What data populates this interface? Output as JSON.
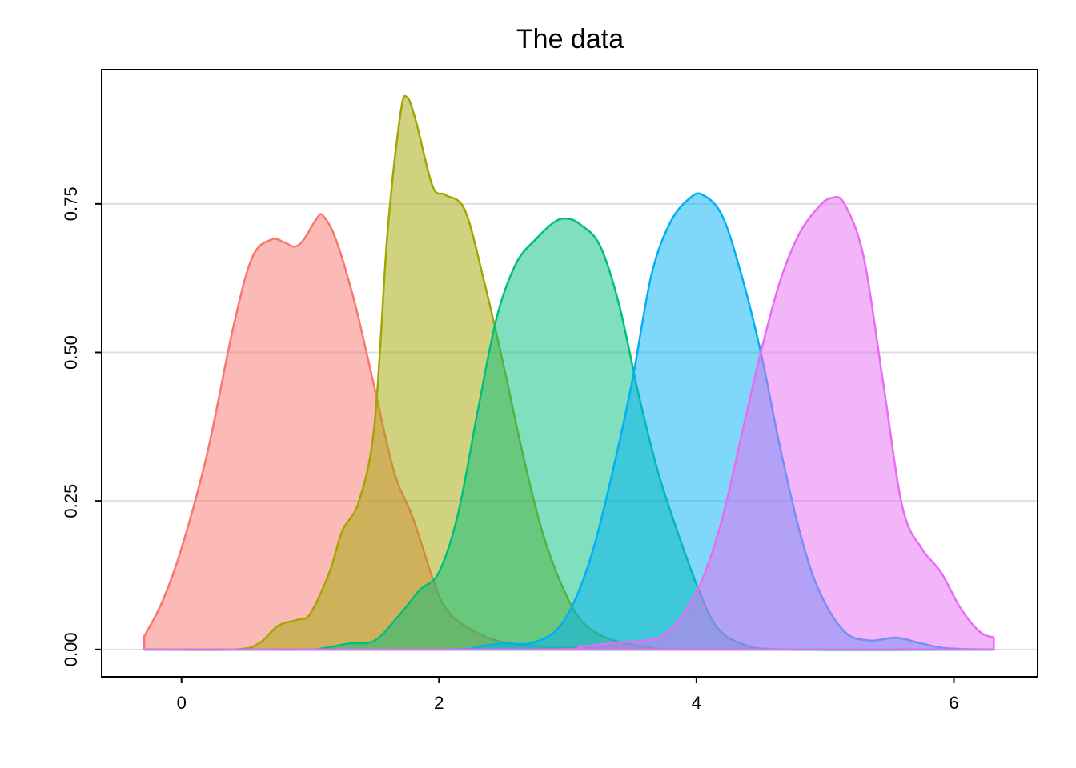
{
  "chart_data": {
    "type": "area",
    "title": "The data",
    "xlabel": "",
    "ylabel": "",
    "xlim": [
      -0.62,
      6.65
    ],
    "ylim": [
      -0.046,
      0.976
    ],
    "x_ticks": [
      0,
      2,
      4,
      6
    ],
    "y_ticks": [
      0,
      0.25,
      0.5,
      0.75
    ],
    "x_tick_labels": [
      "0",
      "2",
      "4",
      "6"
    ],
    "y_tick_labels": [
      "0.00",
      "0.25",
      "0.50",
      "0.75"
    ],
    "grid": {
      "horizontal": true,
      "vertical": false
    },
    "legend": "none",
    "series": [
      {
        "color": "#F8766D",
        "points": [
          [
            -0.29,
            0.022
          ],
          [
            -0.15,
            0.08
          ],
          [
            0.0,
            0.17
          ],
          [
            0.2,
            0.33
          ],
          [
            0.4,
            0.54
          ],
          [
            0.55,
            0.66
          ],
          [
            0.7,
            0.69
          ],
          [
            0.8,
            0.685
          ],
          [
            0.88,
            0.678
          ],
          [
            0.95,
            0.69
          ],
          [
            1.05,
            0.725
          ],
          [
            1.1,
            0.73
          ],
          [
            1.2,
            0.69
          ],
          [
            1.35,
            0.58
          ],
          [
            1.5,
            0.44
          ],
          [
            1.65,
            0.3
          ],
          [
            1.8,
            0.22
          ],
          [
            1.95,
            0.12
          ],
          [
            2.05,
            0.07
          ],
          [
            2.2,
            0.04
          ],
          [
            2.45,
            0.015
          ],
          [
            2.8,
            0.005
          ],
          [
            3.2,
            0.002
          ],
          [
            3.6,
            0.0
          ],
          [
            6.31,
            0.0
          ]
        ]
      },
      {
        "color": "#A3A500",
        "points": [
          [
            -0.29,
            0.0
          ],
          [
            0.4,
            0.0
          ],
          [
            0.6,
            0.01
          ],
          [
            0.75,
            0.04
          ],
          [
            0.9,
            0.05
          ],
          [
            1.0,
            0.06
          ],
          [
            1.15,
            0.13
          ],
          [
            1.25,
            0.2
          ],
          [
            1.38,
            0.25
          ],
          [
            1.5,
            0.38
          ],
          [
            1.6,
            0.7
          ],
          [
            1.7,
            0.9
          ],
          [
            1.75,
            0.93
          ],
          [
            1.82,
            0.89
          ],
          [
            1.95,
            0.78
          ],
          [
            2.05,
            0.765
          ],
          [
            2.2,
            0.74
          ],
          [
            2.35,
            0.62
          ],
          [
            2.5,
            0.48
          ],
          [
            2.65,
            0.33
          ],
          [
            2.8,
            0.2
          ],
          [
            2.95,
            0.11
          ],
          [
            3.1,
            0.05
          ],
          [
            3.3,
            0.02
          ],
          [
            3.6,
            0.005
          ],
          [
            4.0,
            0.0
          ],
          [
            6.31,
            0.0
          ]
        ]
      },
      {
        "color": "#00BF7D",
        "points": [
          [
            -0.29,
            0.0
          ],
          [
            0.9,
            0.0
          ],
          [
            1.1,
            0.002
          ],
          [
            1.3,
            0.01
          ],
          [
            1.5,
            0.015
          ],
          [
            1.7,
            0.06
          ],
          [
            1.85,
            0.1
          ],
          [
            2.0,
            0.13
          ],
          [
            2.15,
            0.23
          ],
          [
            2.3,
            0.4
          ],
          [
            2.45,
            0.56
          ],
          [
            2.6,
            0.65
          ],
          [
            2.75,
            0.69
          ],
          [
            2.9,
            0.72
          ],
          [
            3.0,
            0.725
          ],
          [
            3.1,
            0.715
          ],
          [
            3.25,
            0.68
          ],
          [
            3.4,
            0.58
          ],
          [
            3.55,
            0.43
          ],
          [
            3.7,
            0.3
          ],
          [
            3.85,
            0.2
          ],
          [
            4.0,
            0.11
          ],
          [
            4.15,
            0.04
          ],
          [
            4.35,
            0.01
          ],
          [
            4.7,
            0.0
          ],
          [
            6.31,
            0.0
          ]
        ]
      },
      {
        "color": "#00B0F6",
        "points": [
          [
            -0.29,
            0.0
          ],
          [
            2.0,
            0.0
          ],
          [
            2.3,
            0.005
          ],
          [
            2.5,
            0.01
          ],
          [
            2.7,
            0.01
          ],
          [
            2.9,
            0.03
          ],
          [
            3.05,
            0.08
          ],
          [
            3.2,
            0.17
          ],
          [
            3.35,
            0.3
          ],
          [
            3.5,
            0.45
          ],
          [
            3.65,
            0.63
          ],
          [
            3.8,
            0.72
          ],
          [
            3.95,
            0.76
          ],
          [
            4.05,
            0.765
          ],
          [
            4.2,
            0.73
          ],
          [
            4.35,
            0.63
          ],
          [
            4.5,
            0.5
          ],
          [
            4.65,
            0.34
          ],
          [
            4.8,
            0.2
          ],
          [
            4.95,
            0.1
          ],
          [
            5.15,
            0.03
          ],
          [
            5.35,
            0.015
          ],
          [
            5.55,
            0.02
          ],
          [
            5.75,
            0.01
          ],
          [
            5.95,
            0.002
          ],
          [
            6.31,
            0.0
          ]
        ]
      },
      {
        "color": "#E76BF3",
        "points": [
          [
            -0.29,
            0.0
          ],
          [
            2.8,
            0.0
          ],
          [
            3.1,
            0.005
          ],
          [
            3.4,
            0.012
          ],
          [
            3.6,
            0.015
          ],
          [
            3.75,
            0.025
          ],
          [
            3.9,
            0.06
          ],
          [
            4.05,
            0.12
          ],
          [
            4.2,
            0.22
          ],
          [
            4.35,
            0.36
          ],
          [
            4.5,
            0.5
          ],
          [
            4.65,
            0.62
          ],
          [
            4.8,
            0.7
          ],
          [
            4.95,
            0.745
          ],
          [
            5.05,
            0.76
          ],
          [
            5.15,
            0.75
          ],
          [
            5.3,
            0.66
          ],
          [
            5.45,
            0.45
          ],
          [
            5.6,
            0.24
          ],
          [
            5.75,
            0.17
          ],
          [
            5.9,
            0.13
          ],
          [
            6.05,
            0.07
          ],
          [
            6.2,
            0.03
          ],
          [
            6.31,
            0.02
          ]
        ]
      }
    ]
  }
}
